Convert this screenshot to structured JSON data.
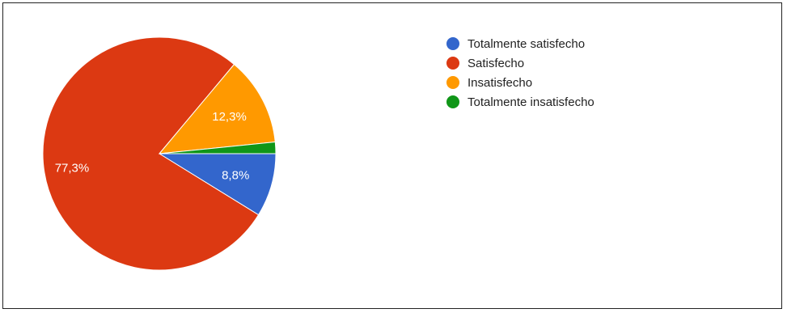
{
  "chart_data": {
    "type": "pie",
    "title": "",
    "legend_position": "right",
    "slices": [
      {
        "label": "Totalmente satisfecho",
        "value": 8.8,
        "value_label": "8,8%",
        "color": "#3366cc"
      },
      {
        "label": "Satisfecho",
        "value": 77.3,
        "value_label": "77,3%",
        "color": "#dc3912"
      },
      {
        "label": "Insatisfecho",
        "value": 12.3,
        "value_label": "12,3%",
        "color": "#ff9900"
      },
      {
        "label": "Totalmente insatisfecho",
        "value": 1.6,
        "value_label": "",
        "color": "#109618"
      }
    ]
  }
}
